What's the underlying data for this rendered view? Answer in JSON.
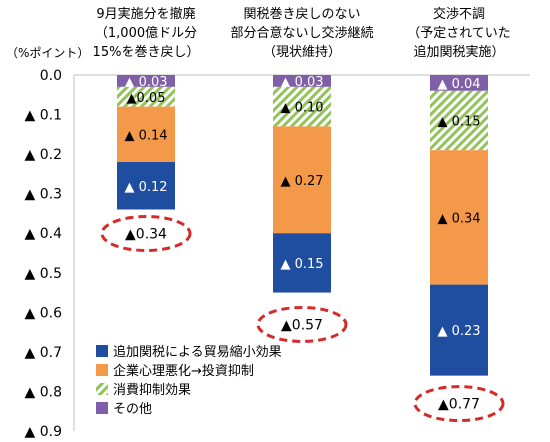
{
  "chart_data": {
    "type": "bar",
    "stacked": true,
    "unit_label": "（%ポイント）",
    "categories": [
      [
        "9月実施分を撤廃",
        "（1,000億ドル分",
        "15%を巻き戻し）"
      ],
      [
        "関税巻き戻しのない",
        "部分合意ないし交渉継続",
        "（現状維持）"
      ],
      [
        "交渉不調",
        "（予定されていた",
        "追加関税実施）"
      ]
    ],
    "y_ticks": [
      "0.0",
      "▲ 0.1",
      "▲ 0.2",
      "▲ 0.3",
      "▲ 0.4",
      "▲ 0.5",
      "▲ 0.6",
      "▲ 0.7",
      "▲ 0.8",
      "▲ 0.9"
    ],
    "ylim": [
      0,
      0.9
    ],
    "grid": false,
    "legend_position": "bottom-left",
    "series": [
      {
        "name": "その他",
        "color": "#7f5fa8",
        "pattern": "solid",
        "values": [
          0.03,
          0.03,
          0.04
        ],
        "labels": [
          "▲ 0.03",
          "▲ 0.03",
          "▲ 0.04"
        ]
      },
      {
        "name": "消費抑制効果",
        "color": "#92c35a",
        "pattern": "hatch",
        "values": [
          0.05,
          0.1,
          0.15
        ],
        "labels": [
          "▲0.05",
          "▲ 0.10",
          "▲ 0.15"
        ]
      },
      {
        "name": "企業心理悪化→投資抑制",
        "color": "#f4994a",
        "pattern": "solid",
        "values": [
          0.14,
          0.27,
          0.34
        ],
        "labels": [
          "▲ 0.14",
          "▲ 0.27",
          "▲ 0.34"
        ]
      },
      {
        "name": "追加関税による貿易縮小効果",
        "color": "#1f4ea0",
        "pattern": "solid",
        "values": [
          0.12,
          0.15,
          0.23
        ],
        "labels": [
          "▲ 0.12",
          "▲ 0.15",
          "▲ 0.23"
        ]
      }
    ],
    "legend_order": [
      3,
      2,
      1,
      0
    ],
    "totals": [
      0.34,
      0.57,
      0.77
    ],
    "total_labels": [
      "▲0.34",
      "▲0.57",
      "▲0.77"
    ],
    "total_marker_color": "#d42a2a"
  }
}
